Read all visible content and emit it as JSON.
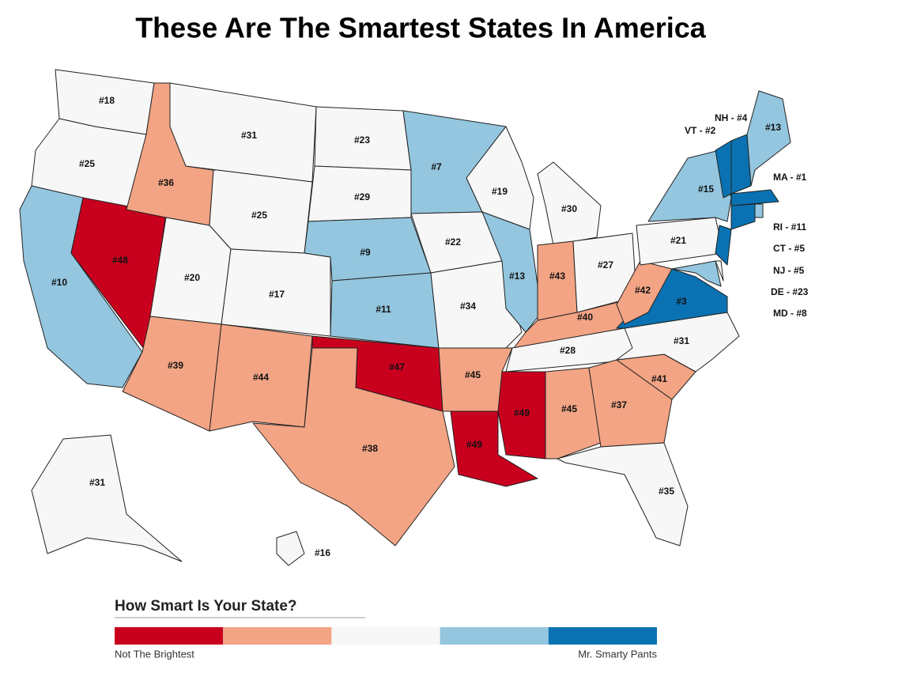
{
  "title": "These Are The Smartest States In America",
  "states": [
    {
      "label": "#18",
      "color": "#f7f7f7"
    },
    {
      "label": "#25",
      "color": "#f7f7f7"
    },
    {
      "label": "#10",
      "color": "#94c6df"
    },
    {
      "label": "#48",
      "color": "#c8001e"
    },
    {
      "label": "#36",
      "color": "#f2a484"
    },
    {
      "label": "#31",
      "color": "#f7f7f7"
    },
    {
      "label": "#25",
      "color": "#f7f7f7"
    },
    {
      "label": "#20",
      "color": "#f7f7f7"
    },
    {
      "label": "#17",
      "color": "#f7f7f7"
    },
    {
      "label": "#39",
      "color": "#f2a484"
    },
    {
      "label": "#44",
      "color": "#f2a484"
    },
    {
      "label": "#23",
      "color": "#f7f7f7"
    },
    {
      "label": "#29",
      "color": "#f7f7f7"
    },
    {
      "label": "#9",
      "color": "#94c6df"
    },
    {
      "label": "#11",
      "color": "#94c6df"
    },
    {
      "label": "#47",
      "color": "#c8001e"
    },
    {
      "label": "#38",
      "color": "#f2a484"
    },
    {
      "label": "#7",
      "color": "#94c6df"
    },
    {
      "label": "#22",
      "color": "#f7f7f7"
    },
    {
      "label": "#34",
      "color": "#f7f7f7"
    },
    {
      "label": "#45",
      "color": "#f2a484"
    },
    {
      "label": "#49",
      "color": "#c8001e"
    },
    {
      "label": "#19",
      "color": "#f7f7f7"
    },
    {
      "label": "#13",
      "color": "#94c6df"
    },
    {
      "label": "#30",
      "color": "#f7f7f7"
    },
    {
      "label": "#43",
      "color": "#f2a484"
    },
    {
      "label": "#27",
      "color": "#f7f7f7"
    },
    {
      "label": "#40",
      "color": "#f2a484"
    },
    {
      "label": "#28",
      "color": "#f7f7f7"
    },
    {
      "label": "#49",
      "color": "#c8001e"
    },
    {
      "label": "#45",
      "color": "#f2a484"
    },
    {
      "label": "#37",
      "color": "#f2a484"
    },
    {
      "label": "#35",
      "color": "#f7f7f7"
    },
    {
      "label": "#41",
      "color": "#f2a484"
    },
    {
      "label": "#31",
      "color": "#f7f7f7"
    },
    {
      "label": "#3",
      "color": "#0a72b2"
    },
    {
      "label": "#42",
      "color": "#f2a484"
    },
    {
      "label": "#21",
      "color": "#f7f7f7"
    },
    {
      "label": "#15",
      "color": "#94c6df"
    },
    {
      "label": "VT - #2",
      "color": "#0a72b2"
    },
    {
      "label": "NH - #4",
      "color": "#0a72b2"
    },
    {
      "label": "#13",
      "color": "#94c6df"
    },
    {
      "label": "MA - #1",
      "color": "#0a72b2"
    },
    {
      "label": "RI - #11",
      "color": "#94c6df"
    },
    {
      "label": "CT - #5",
      "color": "#0a72b2"
    },
    {
      "label": "NJ - #5",
      "color": "#0a72b2"
    },
    {
      "label": "DE - #23",
      "color": "#f7f7f7"
    },
    {
      "label": "MD - #8",
      "color": "#94c6df"
    },
    {
      "label": "#31",
      "color": "#f7f7f7"
    },
    {
      "label": "#16",
      "color": "#f7f7f7"
    }
  ],
  "legend": {
    "title": "How Smart Is Your State?",
    "colors": [
      "#c8001e",
      "#f2a484",
      "#f7f7f7",
      "#94c6df",
      "#0a72b2"
    ],
    "low_label": "Not The Brightest",
    "high_label": "Mr. Smarty Pants"
  }
}
